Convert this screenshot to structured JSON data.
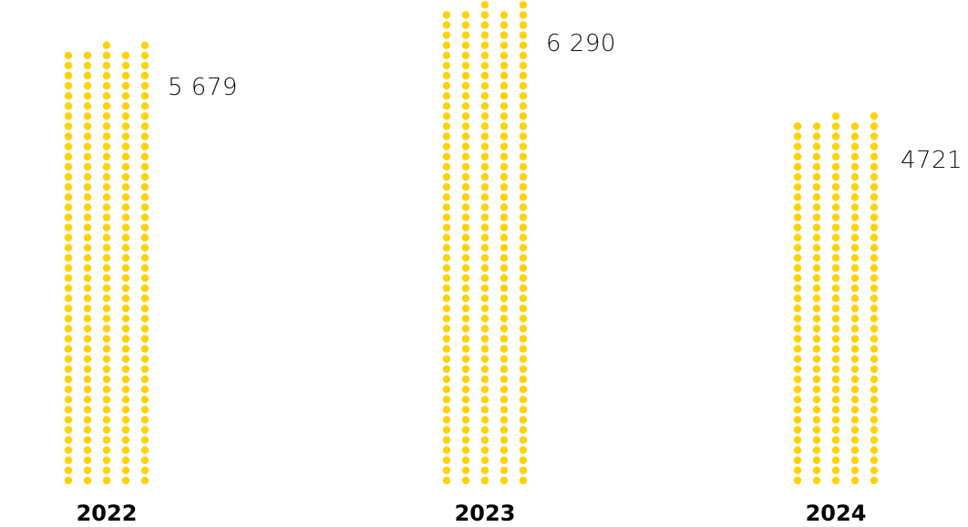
{
  "chart_data": {
    "type": "bar",
    "style": "dot-column",
    "categories": [
      "2022",
      "2023",
      "2024"
    ],
    "values": [
      5679,
      6290,
      4721
    ],
    "value_labels": [
      "5 679",
      "6 290",
      "4721"
    ],
    "title": "",
    "xlabel": "",
    "ylabel": "",
    "grid": false,
    "legend": "none",
    "colors": {
      "dot": "#FFD200",
      "value_text": "#111111",
      "category_text": "#000000"
    }
  }
}
